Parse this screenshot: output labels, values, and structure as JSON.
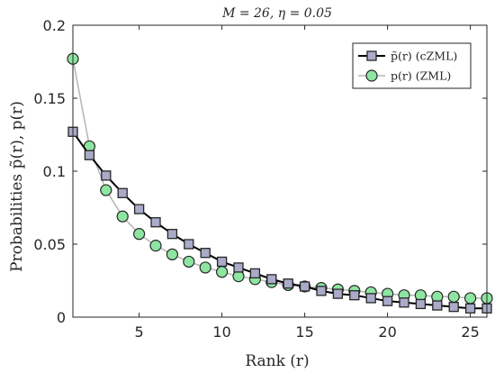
{
  "chart_data": {
    "type": "line",
    "title": "M = 26, η = 0.05",
    "xlabel": "Rank (r)",
    "ylabel": "Probabilities p̃(r), p(r)",
    "xlim": [
      1,
      26
    ],
    "ylim": [
      0,
      0.2
    ],
    "xticks": [
      5,
      10,
      15,
      20,
      25
    ],
    "yticks": [
      0,
      0.05,
      0.1,
      0.15,
      0.2
    ],
    "ytick_labels": [
      "0",
      "0.05",
      "0.1",
      "0.15",
      "0.2"
    ],
    "grid": false,
    "legend_position": "top-right",
    "x": [
      1,
      2,
      3,
      4,
      5,
      6,
      7,
      8,
      9,
      10,
      11,
      12,
      13,
      14,
      15,
      16,
      17,
      18,
      19,
      20,
      21,
      22,
      23,
      24,
      25,
      26
    ],
    "series": [
      {
        "name": "p̃(r) (cZML)",
        "marker": "square",
        "line_color": "#000000",
        "marker_fill": "#a9abc9",
        "values": [
          0.127,
          0.111,
          0.097,
          0.085,
          0.074,
          0.065,
          0.057,
          0.05,
          0.044,
          0.038,
          0.034,
          0.03,
          0.026,
          0.023,
          0.021,
          0.018,
          0.016,
          0.015,
          0.013,
          0.011,
          0.01,
          0.009,
          0.008,
          0.007,
          0.006,
          0.006
        ]
      },
      {
        "name": "p(r) (ZML)",
        "marker": "circle",
        "line_color": "#b8b8b8",
        "marker_fill": "#8de5a1",
        "values": [
          0.177,
          0.117,
          0.087,
          0.069,
          0.057,
          0.049,
          0.043,
          0.038,
          0.034,
          0.031,
          0.028,
          0.026,
          0.024,
          0.022,
          0.021,
          0.02,
          0.019,
          0.018,
          0.017,
          0.016,
          0.015,
          0.015,
          0.014,
          0.014,
          0.013,
          0.013
        ]
      }
    ]
  }
}
